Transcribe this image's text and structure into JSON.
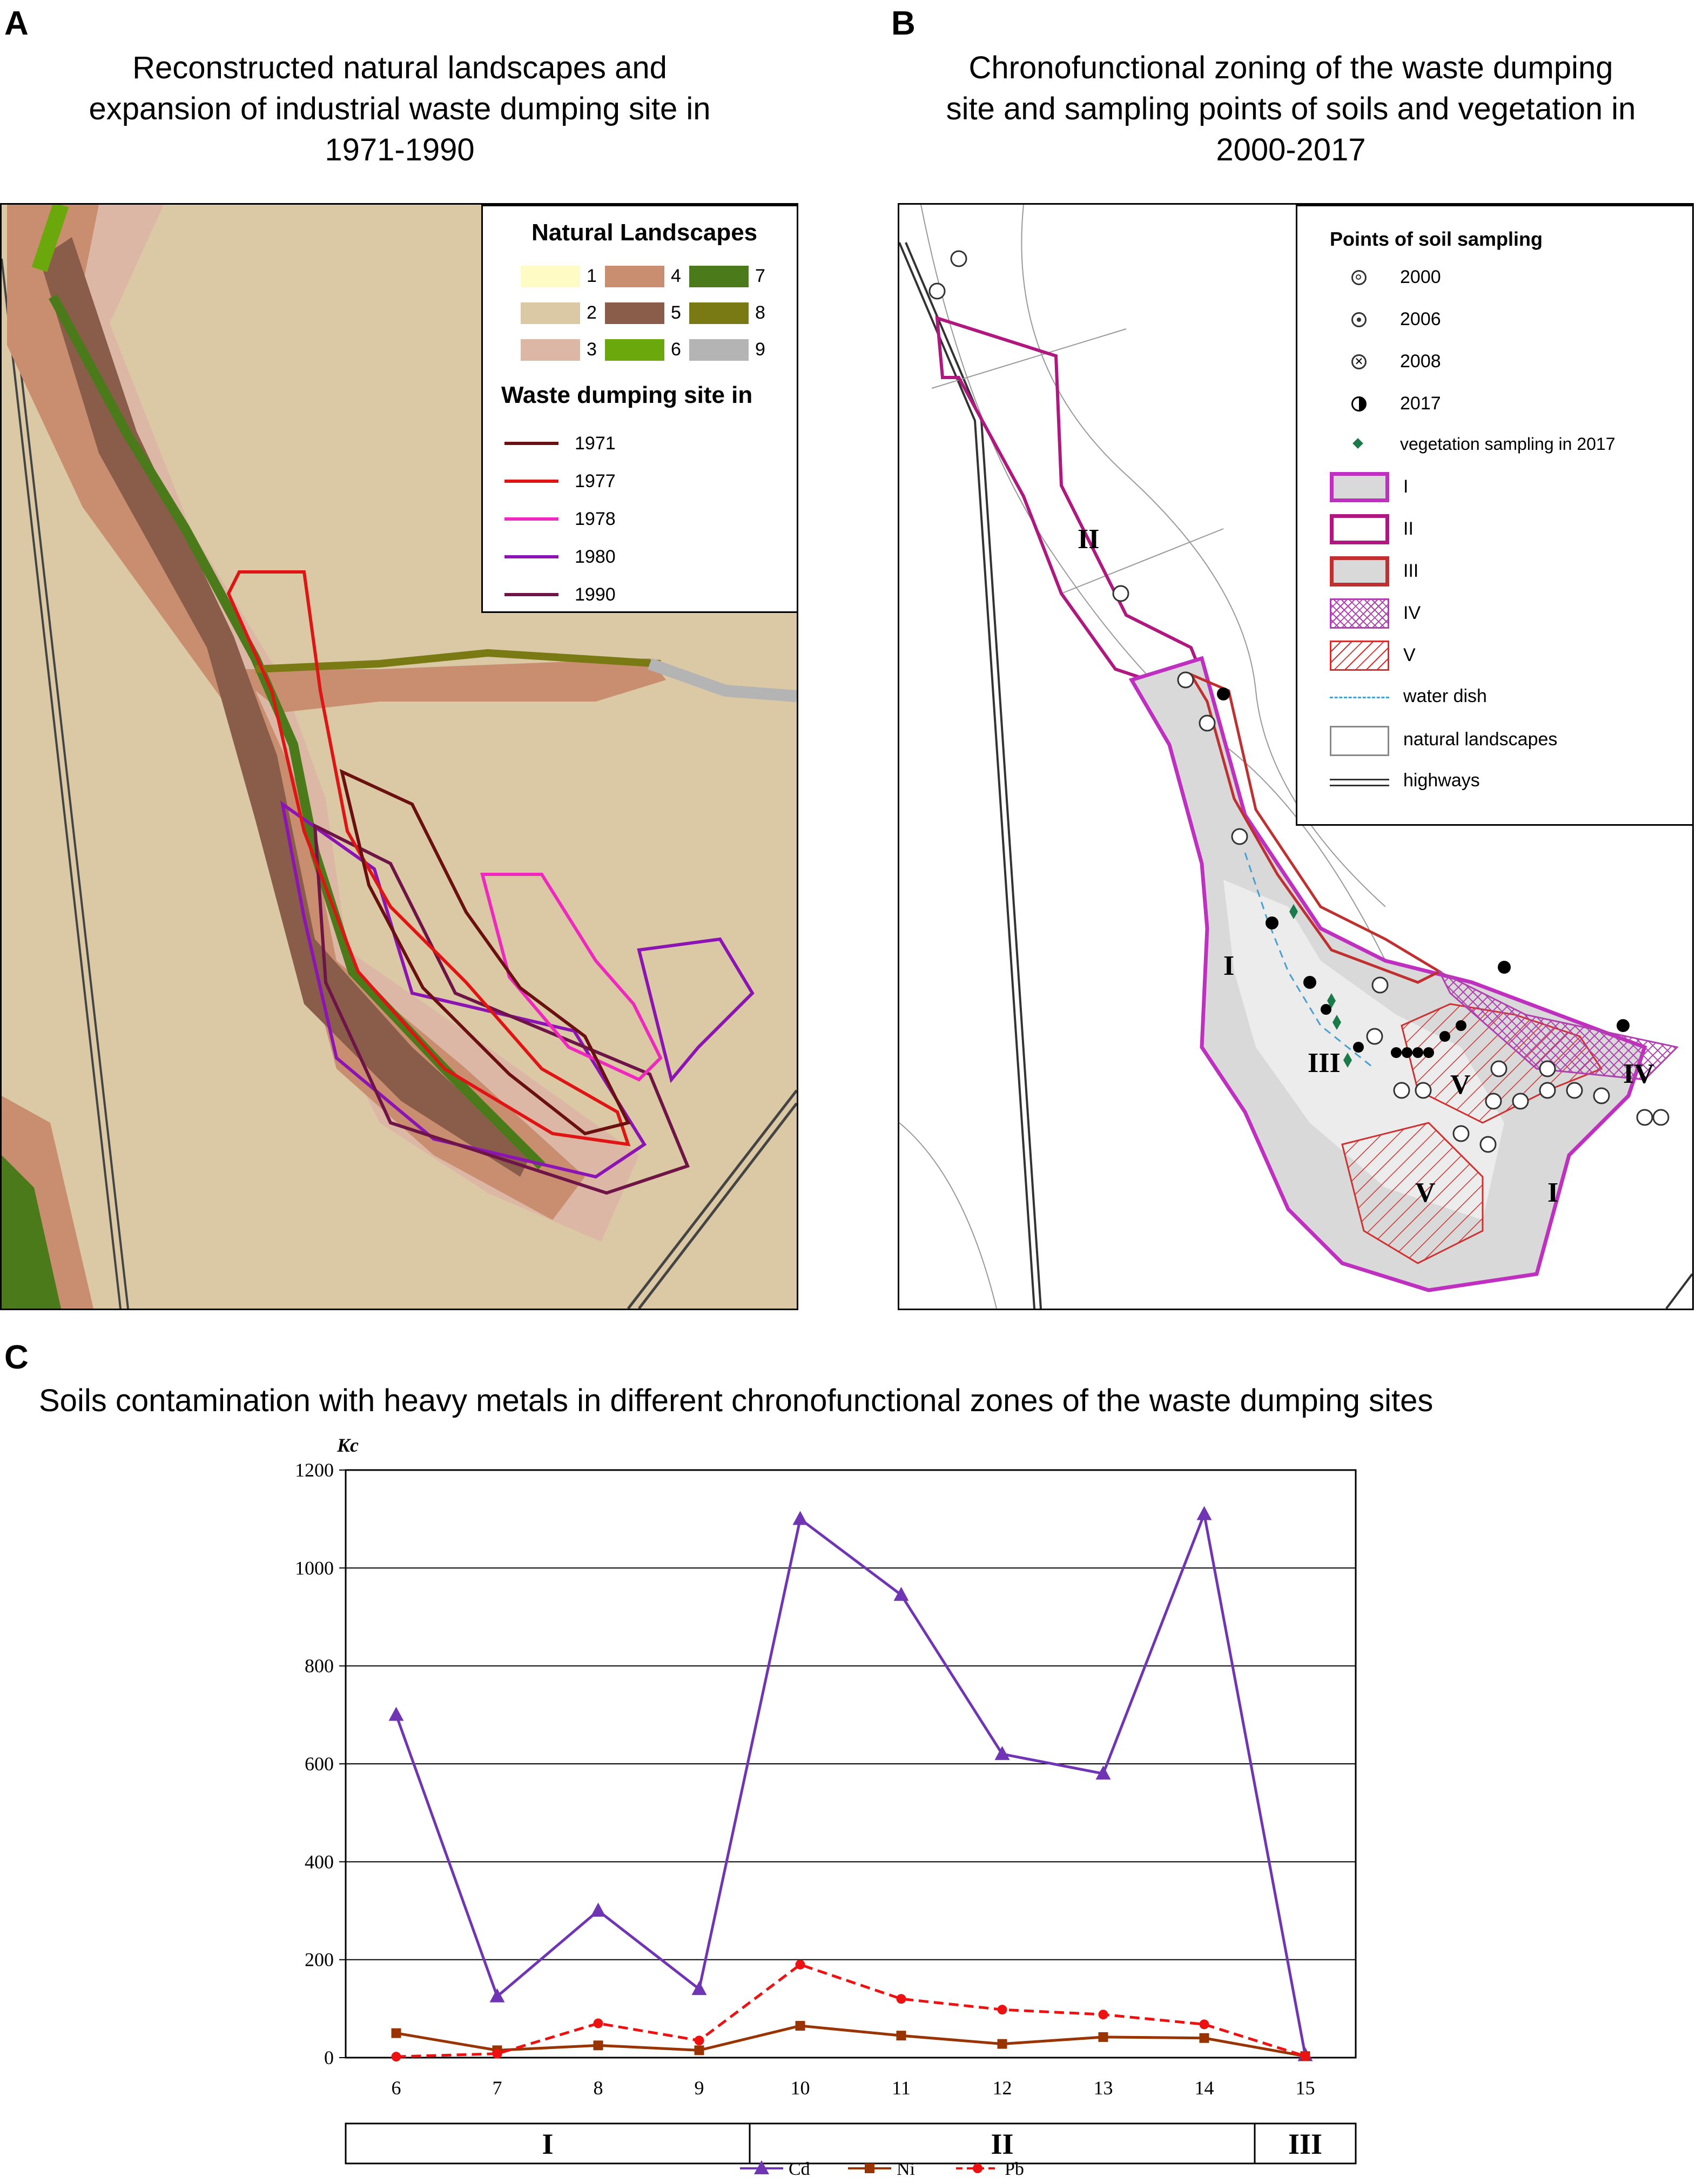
{
  "panel_a": {
    "letter": "A",
    "title_lines": [
      "Reconstructed natural landscapes and",
      "expansion of industrial waste dumping site in",
      "1971-1990"
    ],
    "legend": {
      "heading_landscapes": "Natural Landscapes",
      "landscapes": [
        {
          "num": "1",
          "color": "#fffbc4"
        },
        {
          "num": "2",
          "color": "#dac9a4"
        },
        {
          "num": "3",
          "color": "#dcb7a5"
        },
        {
          "num": "4",
          "color": "#c98d70"
        },
        {
          "num": "5",
          "color": "#8a5c4a"
        },
        {
          "num": "6",
          "color": "#6aa80c"
        },
        {
          "num": "7",
          "color": "#4b7a1a"
        },
        {
          "num": "8",
          "color": "#7a7a14"
        },
        {
          "num": "9",
          "color": "#b4b4b4"
        }
      ],
      "heading_dumping": "Waste dumping site in",
      "years": [
        {
          "year": "1971",
          "color": "#6b1010"
        },
        {
          "year": "1977",
          "color": "#e01414"
        },
        {
          "year": "1978",
          "color": "#f028c0"
        },
        {
          "year": "1980",
          "color": "#8c14b4"
        },
        {
          "year": "1990",
          "color": "#6e1446"
        }
      ]
    }
  },
  "panel_b": {
    "letter": "B",
    "title_lines": [
      "Chronofunctional zoning of the waste dumping",
      "site and sampling points of soils and vegetation in",
      "2000-2017"
    ],
    "zone_labels": [
      "II",
      "I",
      "III",
      "V",
      "IV",
      "V",
      "I"
    ],
    "legend": {
      "heading": "Points of soil sampling",
      "points": [
        {
          "label": "2000",
          "icon": "double-circle-icon"
        },
        {
          "label": "2006",
          "icon": "dotted-circle-icon"
        },
        {
          "label": "2008",
          "icon": "crossed-circle-icon"
        },
        {
          "label": "2017",
          "icon": "half-filled-circle-icon"
        },
        {
          "label": "vegetation sampling in 2017",
          "icon": "green-diamond-icon"
        }
      ],
      "zones": [
        "I",
        "II",
        "III",
        "IV",
        "V"
      ],
      "water_dish": "water dish",
      "natural_landscapes": "natural landscapes",
      "highways": "highways"
    }
  },
  "panel_c": {
    "letter": "C",
    "title": "Soils contamination with heavy metals in different chronofunctional zones of the waste dumping sites"
  },
  "chart_data": {
    "type": "line",
    "title": "Soils contamination with heavy metals in different chronofunctional zones of the waste dumping sites",
    "ylabel": "Kc",
    "xlabel": "",
    "ylim": [
      0,
      1200
    ],
    "yticks": [
      0,
      200,
      400,
      600,
      800,
      1000,
      1200
    ],
    "grid": "horizontal",
    "legend_position": "bottom",
    "x": [
      6,
      7,
      8,
      9,
      10,
      11,
      12,
      13,
      14,
      15
    ],
    "series": [
      {
        "name": "Cd",
        "color": "#6f35b5",
        "marker": "triangle",
        "dash": "solid",
        "values": [
          700,
          125,
          300,
          140,
          1100,
          945,
          620,
          580,
          1110,
          5
        ]
      },
      {
        "name": "Ni",
        "color": "#993300",
        "marker": "square",
        "dash": "solid",
        "values": [
          50,
          15,
          25,
          15,
          65,
          45,
          28,
          42,
          40,
          3
        ]
      },
      {
        "name": "Pb",
        "color": "#ee1111",
        "marker": "circle",
        "dash": "dashed",
        "values": [
          2,
          8,
          70,
          35,
          190,
          120,
          98,
          88,
          68,
          3
        ]
      }
    ],
    "zone_groups": [
      {
        "label": "I",
        "from": 6,
        "to": 9
      },
      {
        "label": "II",
        "from": 10,
        "to": 14
      },
      {
        "label": "III",
        "from": 15,
        "to": 15
      }
    ]
  }
}
